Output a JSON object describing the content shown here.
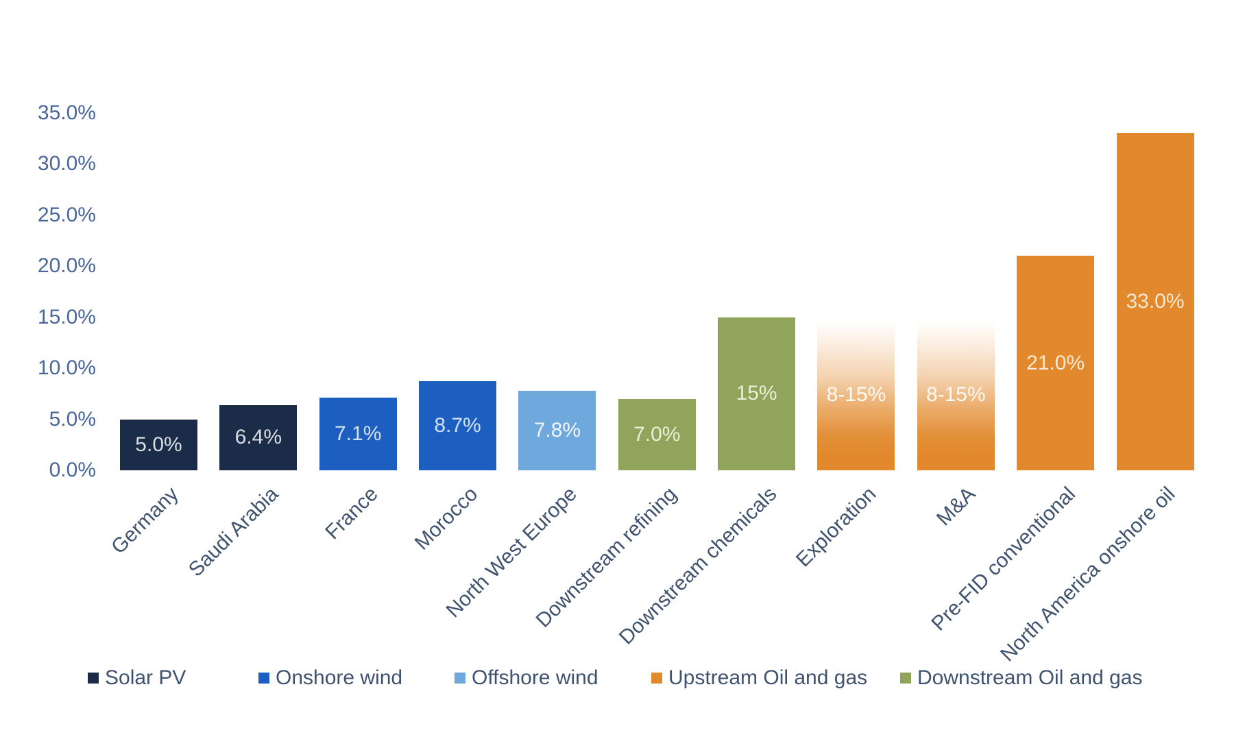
{
  "chart_data": {
    "type": "bar",
    "title": "",
    "xlabel": "",
    "ylabel": "",
    "ylim": [
      0,
      35
    ],
    "grid": false,
    "legend_position": "bottom",
    "y_axis_ticks": [
      {
        "value": 35,
        "label": "35.0%"
      },
      {
        "value": 30,
        "label": "30.0%"
      },
      {
        "value": 25,
        "label": "25.0%"
      },
      {
        "value": 20,
        "label": "20.0%"
      },
      {
        "value": 15,
        "label": "15.0%"
      },
      {
        "value": 10,
        "label": "10.0%"
      },
      {
        "value": 5,
        "label": "5.0%"
      },
      {
        "value": 0,
        "label": "0.0%"
      }
    ],
    "series": [
      {
        "name": "Solar PV",
        "color": "#1A2C48"
      },
      {
        "name": "Onshore wind",
        "color": "#1D5FC0"
      },
      {
        "name": "Offshore wind",
        "color": "#6FA8DC"
      },
      {
        "name": "Upstream Oil and gas",
        "color": "#E1892C"
      },
      {
        "name": "Downstream Oil and gas",
        "color": "#90A55B"
      }
    ],
    "bars": [
      {
        "category": "Germany",
        "series": "Solar PV",
        "value": 5.0,
        "label": "5.0%",
        "display_height_pct": 5.0,
        "style": "solid",
        "label_color": "#D9DCE1"
      },
      {
        "category": "Saudi Arabia",
        "series": "Solar PV",
        "value": 6.4,
        "label": "6.4%",
        "display_height_pct": 6.4,
        "style": "solid",
        "label_color": "#D9DCE1"
      },
      {
        "category": "France",
        "series": "Onshore wind",
        "value": 7.1,
        "label": "7.1%",
        "display_height_pct": 7.1,
        "style": "solid",
        "label_color": "#D4E0F0"
      },
      {
        "category": "Morocco",
        "series": "Onshore wind",
        "value": 8.7,
        "label": "8.7%",
        "display_height_pct": 8.7,
        "style": "solid",
        "label_color": "#D4E0F0"
      },
      {
        "category": "North West Europe",
        "series": "Offshore wind",
        "value": 7.8,
        "label": "7.8%",
        "display_height_pct": 7.8,
        "style": "solid",
        "label_color": "#F0F5FB"
      },
      {
        "category": "Downstream refining",
        "series": "Downstream Oil and gas",
        "value": 7.0,
        "label": "7.0%",
        "display_height_pct": 7.0,
        "style": "solid",
        "label_color": "#ECEFD8"
      },
      {
        "category": "Downstream chemicals",
        "series": "Downstream Oil and gas",
        "value": 15.0,
        "label": "15%",
        "display_height_pct": 15.0,
        "style": "solid",
        "label_color": "#ECEFD8"
      },
      {
        "category": "Exploration",
        "series": "Upstream Oil and gas",
        "value_range": [
          8,
          15
        ],
        "label": "8-15%",
        "display_height_pct": 14.7,
        "style": "gradient",
        "label_color": "#FDF9F3"
      },
      {
        "category": "M&A",
        "series": "Upstream Oil and gas",
        "value_range": [
          8,
          15
        ],
        "label": "8-15%",
        "display_height_pct": 14.7,
        "style": "gradient",
        "label_color": "#FDF9F3"
      },
      {
        "category": "Pre-FID conventional",
        "series": "Upstream Oil and gas",
        "value": 21.0,
        "label": "21.0%",
        "display_height_pct": 21.0,
        "style": "solid",
        "label_color": "#F7E9D3"
      },
      {
        "category": "North America onshore oil",
        "series": "Upstream Oil and gas",
        "value": 33.0,
        "label": "33.0%",
        "display_height_pct": 33.0,
        "style": "solid",
        "label_color": "#F7E9D3"
      }
    ]
  },
  "colors": {
    "background": "#FFFFFF",
    "y_tick_label": "#48669A",
    "category_label": "#3F536F",
    "legend_label": "#3F536F",
    "gradient_base_orange": "#E1892C"
  }
}
